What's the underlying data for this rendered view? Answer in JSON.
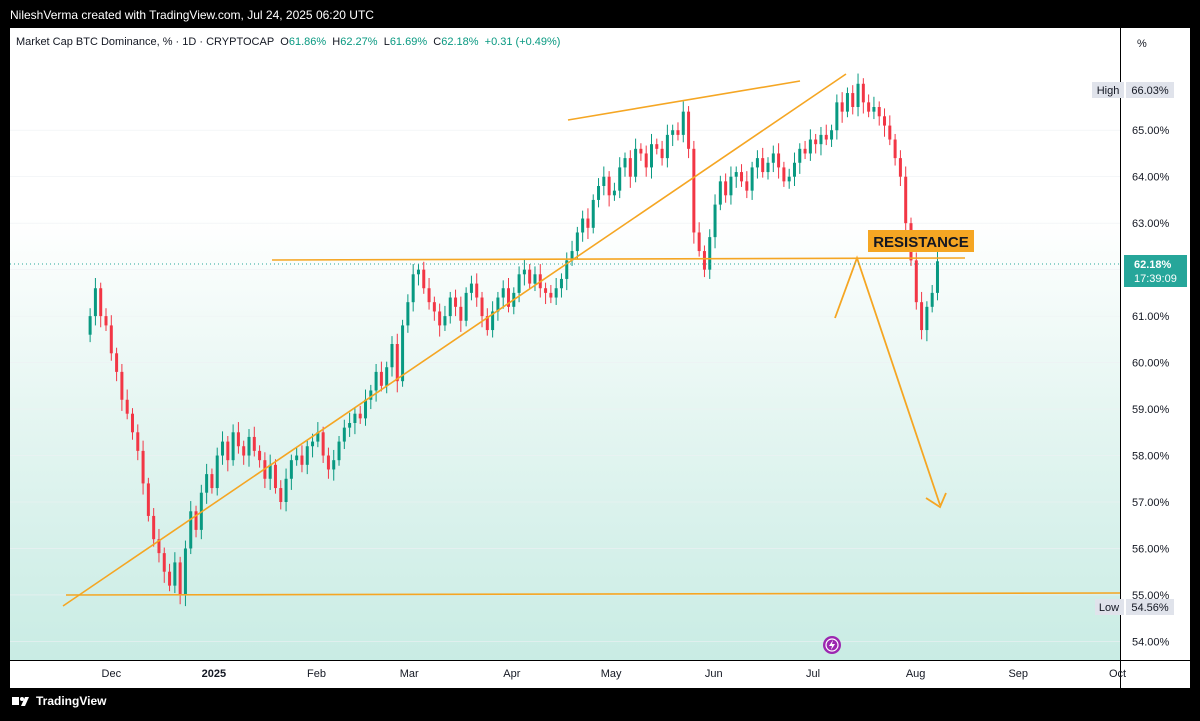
{
  "header": {
    "credit": "NileshVerma created with TradingView.com, Jul 24, 2025 06:20 UTC"
  },
  "legend": {
    "symbol": "Market Cap BTC Dominance, % · 1D · CRYPTOCAP",
    "open_label": "O",
    "open": "61.86%",
    "high_label": "H",
    "high": "62.27%",
    "low_label": "L",
    "low": "61.69%",
    "close_label": "C",
    "close": "62.18%",
    "change": "+0.31 (+0.49%)"
  },
  "price_scale": {
    "unit": "%",
    "high_tag": "High",
    "high_value": "66.03%",
    "low_tag": "Low",
    "low_value": "54.56%",
    "last_value": "62.18%",
    "countdown": "17:39:09"
  },
  "annotation": {
    "resistance": "RESISTANCE"
  },
  "footer": {
    "brand": "TradingView"
  },
  "colors": {
    "up": "#089981",
    "down": "#f23645",
    "drawing": "#f5a623",
    "last": "#26a69a"
  },
  "chart_data": {
    "type": "candlestick",
    "title": "Market Cap BTC Dominance, % · 1D · CRYPTOCAP",
    "ylim": [
      53.6,
      67.2
    ],
    "y_ticks": [
      "54.00%",
      "55.00%",
      "56.00%",
      "57.00%",
      "58.00%",
      "59.00%",
      "60.00%",
      "61.00%",
      "62.00%",
      "63.00%",
      "64.00%",
      "65.00%"
    ],
    "y_tick_values": [
      54,
      55,
      56,
      57,
      58,
      59,
      60,
      61,
      62,
      63,
      64,
      65
    ],
    "x_ticks": [
      "Dec",
      "2025",
      "Feb",
      "Mar",
      "Apr",
      "May",
      "Jun",
      "Jul",
      "Aug",
      "Sep",
      "Oct"
    ],
    "x_tick_days": [
      30,
      61,
      92,
      120,
      151,
      181,
      212,
      242,
      273,
      304,
      334
    ],
    "x_start": "2024-11-01",
    "series": [
      {
        "name": "BTC.D",
        "closes": [
          60.6,
          61.0,
          61.6,
          61.0,
          60.8,
          60.2,
          59.8,
          59.2,
          58.9,
          58.5,
          58.1,
          57.4,
          56.7,
          56.2,
          55.9,
          55.5,
          55.2,
          55.7,
          55.0,
          56.0,
          56.8,
          56.4,
          57.2,
          57.6,
          57.3,
          58.0,
          58.3,
          57.9,
          58.5,
          58.2,
          58.0,
          58.4,
          58.1,
          57.9,
          57.5,
          57.8,
          57.3,
          57.0,
          57.5,
          57.9,
          58.0,
          57.8,
          58.2,
          58.3,
          58.5,
          58.0,
          57.7,
          57.9,
          58.3,
          58.6,
          58.7,
          58.9,
          58.8,
          59.2,
          59.4,
          59.8,
          59.5,
          59.9,
          60.4,
          59.6,
          60.8,
          61.3,
          61.9,
          62.0,
          61.6,
          61.3,
          61.1,
          60.8,
          61.0,
          61.4,
          61.2,
          60.9,
          61.5,
          61.7,
          61.4,
          61.0,
          60.7,
          61.1,
          61.4,
          61.6,
          61.2,
          61.5,
          61.9,
          62.0,
          61.7,
          61.9,
          61.6,
          61.5,
          61.4,
          61.6,
          61.8,
          62.2,
          62.4,
          62.8,
          63.1,
          62.9,
          63.5,
          63.8,
          64.0,
          63.6,
          63.7,
          64.2,
          64.4,
          64.0,
          64.6,
          64.5,
          64.2,
          64.7,
          64.6,
          64.4,
          64.9,
          65.0,
          64.9,
          65.4,
          64.6,
          62.8,
          62.4,
          62.0,
          62.7,
          63.4,
          63.9,
          63.6,
          64.0,
          64.1,
          63.9,
          63.7,
          64.2,
          64.4,
          64.1,
          64.3,
          64.5,
          64.2,
          63.9,
          64.0,
          64.3,
          64.6,
          64.5,
          64.8,
          64.7,
          64.9,
          64.8,
          65.0,
          65.6,
          65.4,
          65.8,
          65.5,
          66.0,
          65.6,
          65.4,
          65.5,
          65.3,
          65.1,
          64.8,
          64.4,
          64.0,
          63.0,
          62.2,
          61.3,
          60.7,
          61.2,
          61.5,
          62.18
        ]
      }
    ],
    "levels": {
      "resistance": 62.18,
      "support": 54.95
    }
  }
}
